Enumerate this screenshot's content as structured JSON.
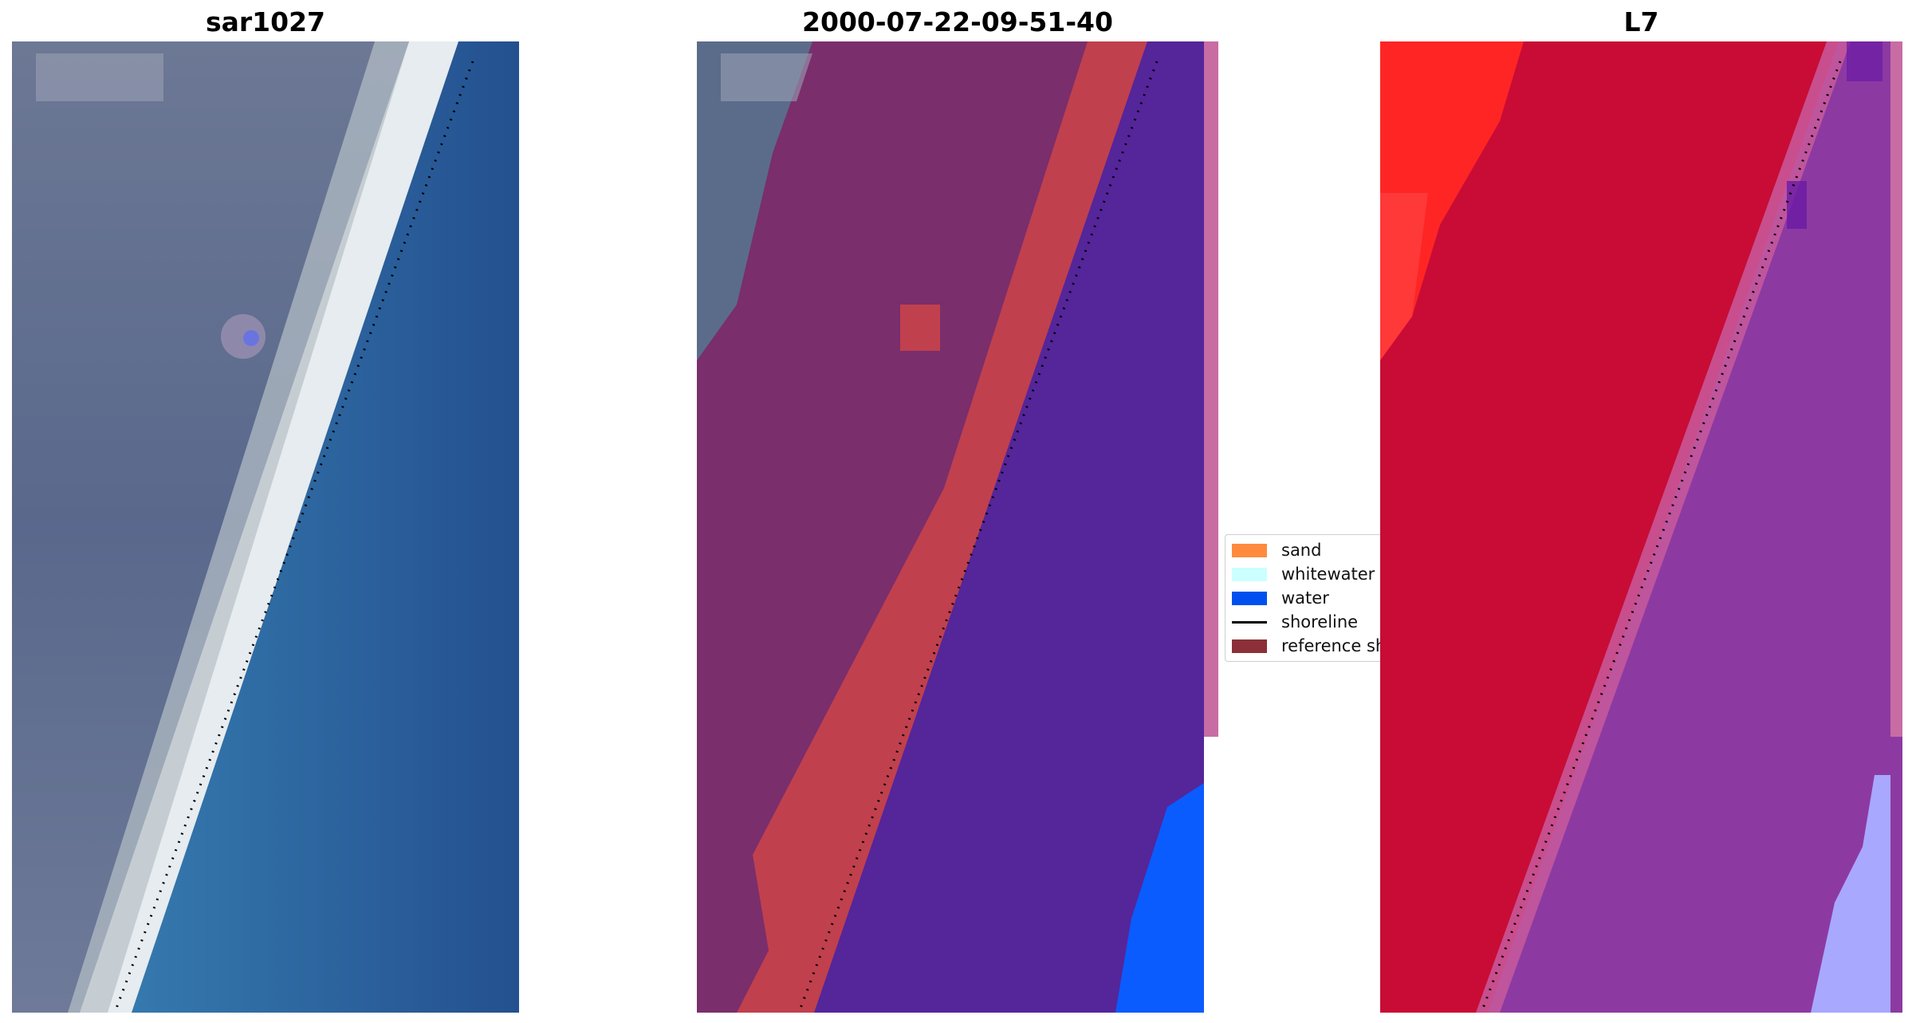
{
  "panels": [
    {
      "title": "sar1027"
    },
    {
      "title": "2000-07-22-09-51-40"
    },
    {
      "title": "L7"
    }
  ],
  "legend": {
    "items": [
      {
        "label": "sand",
        "color": "#ff8a3d"
      },
      {
        "label": "whitewater",
        "color": "#ccffff"
      },
      {
        "label": "water",
        "color": "#0050f0"
      },
      {
        "label": "shoreline",
        "color": "#000000"
      },
      {
        "label": "reference sh",
        "color": "#8b3039"
      }
    ]
  },
  "colors": {
    "land_rgb": "#5e6e8c",
    "sand_rgb": "#e8eef2",
    "water_rgb": "#2d78b0",
    "land_overlay": "#7a2e6c",
    "sand_overlay": "#c0404e",
    "water_overlay": "#55259a",
    "water_edge": "#0a5cff",
    "index_land": "#c80c35",
    "index_water": "#8c3aa2",
    "index_bright": "#ff2525",
    "index_shallow": "#a8a8ff"
  }
}
